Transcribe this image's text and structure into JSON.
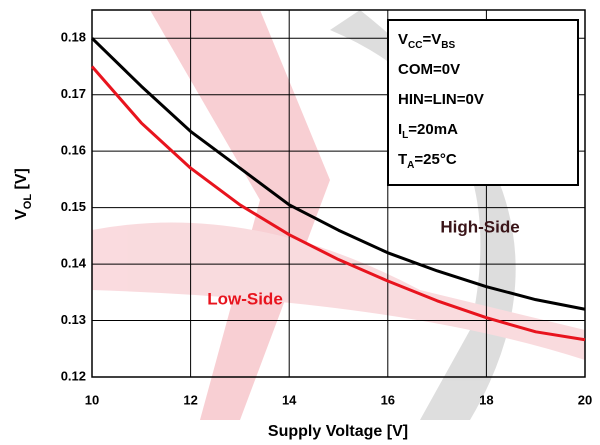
{
  "chart_data": {
    "type": "line",
    "x_label": "Supply Voltage [V]",
    "y_label": [
      {
        "text": "V"
      },
      {
        "text": "OL",
        "sub": true
      },
      {
        "text": " [V]"
      }
    ],
    "x": [
      10,
      11,
      12,
      13,
      14,
      15,
      16,
      17,
      18,
      19,
      20
    ],
    "series": [
      {
        "name": "High-Side",
        "color": "#000000",
        "label_color": "#3a1418",
        "values": [
          0.18,
          0.1715,
          0.1635,
          0.157,
          0.1505,
          0.146,
          0.142,
          0.1388,
          0.136,
          0.1337,
          0.132
        ]
      },
      {
        "name": "Low-Side",
        "color": "#e8141e",
        "label_color": "#e8141e",
        "values": [
          0.175,
          0.165,
          0.157,
          0.1505,
          0.1452,
          0.1408,
          0.137,
          0.1335,
          0.1305,
          0.128,
          0.1266
        ]
      }
    ],
    "conditions": [
      [
        {
          "text": "V"
        },
        {
          "text": "CC",
          "sub": true
        },
        {
          "text": "=V"
        },
        {
          "text": "BS",
          "sub": true
        }
      ],
      [
        {
          "text": "COM=0V"
        }
      ],
      [
        {
          "text": "HIN=LIN=0V"
        }
      ],
      [
        {
          "text": "I"
        },
        {
          "text": "L",
          "sub": true
        },
        {
          "text": "=20mA"
        }
      ],
      [
        {
          "text": "T"
        },
        {
          "text": "A",
          "sub": true
        },
        {
          "text": "=25°C"
        }
      ]
    ],
    "xlim": [
      10,
      20
    ],
    "xticks": [
      10,
      12,
      14,
      16,
      18,
      20
    ],
    "ylim": [
      0.12,
      0.185
    ],
    "yticks": [
      0.12,
      0.13,
      0.14,
      0.15,
      0.16,
      0.17,
      0.18
    ],
    "grid": true
  }
}
